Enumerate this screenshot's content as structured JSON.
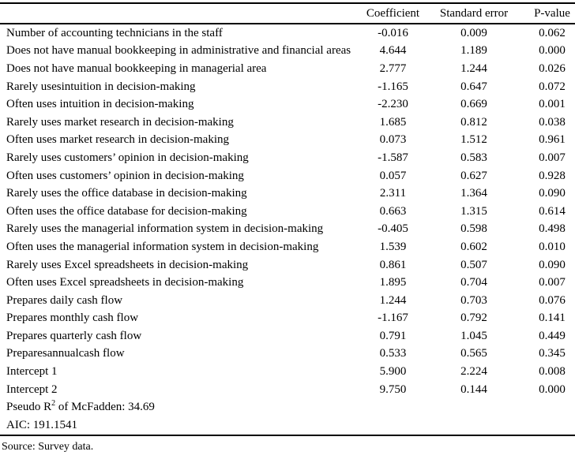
{
  "table": {
    "headers": {
      "label": "",
      "coefficient": "Coefficient",
      "std_error": "Standard error",
      "p_value": "P-value"
    },
    "rows": [
      {
        "label": "Number of accounting technicians in the staff",
        "coefficient": "-0.016",
        "std_error": "0.009",
        "p_value": "0.062"
      },
      {
        "label": "Does not have manual bookkeeping in administrative and financial areas",
        "coefficient": "4.644",
        "std_error": "1.189",
        "p_value": "0.000"
      },
      {
        "label": "Does not have manual bookkeeping in managerial area",
        "coefficient": "2.777",
        "std_error": "1.244",
        "p_value": "0.026"
      },
      {
        "label": "Rarely usesintuition in decision-making",
        "coefficient": "-1.165",
        "std_error": "0.647",
        "p_value": "0.072"
      },
      {
        "label": "Often uses intuition in decision-making",
        "coefficient": "-2.230",
        "std_error": "0.669",
        "p_value": "0.001"
      },
      {
        "label": "Rarely uses market research in decision-making",
        "coefficient": "1.685",
        "std_error": "0.812",
        "p_value": "0.038"
      },
      {
        "label": "Often uses market research in decision-making",
        "coefficient": "0.073",
        "std_error": "1.512",
        "p_value": "0.961"
      },
      {
        "label": "Rarely uses customers’ opinion in decision-making",
        "coefficient": "-1.587",
        "std_error": "0.583",
        "p_value": "0.007"
      },
      {
        "label": "Often uses customers’ opinion in decision-making",
        "coefficient": "0.057",
        "std_error": "0.627",
        "p_value": "0.928"
      },
      {
        "label": "Rarely uses the office database in decision-making",
        "coefficient": "2.311",
        "std_error": "1.364",
        "p_value": "0.090"
      },
      {
        "label": "Often uses the office database for decision-making",
        "coefficient": "0.663",
        "std_error": "1.315",
        "p_value": "0.614"
      },
      {
        "label": "Rarely uses the managerial information system in decision-making",
        "coefficient": "-0.405",
        "std_error": "0.598",
        "p_value": "0.498"
      },
      {
        "label": "Often uses the managerial information system in decision-making",
        "coefficient": "1.539",
        "std_error": "0.602",
        "p_value": "0.010"
      },
      {
        "label": "Rarely uses Excel spreadsheets in decision-making",
        "coefficient": "0.861",
        "std_error": "0.507",
        "p_value": "0.090"
      },
      {
        "label": "Often uses Excel spreadsheets in decision-making",
        "coefficient": "1.895",
        "std_error": "0.704",
        "p_value": "0.007"
      },
      {
        "label": "Prepares daily cash flow",
        "coefficient": "1.244",
        "std_error": "0.703",
        "p_value": "0.076"
      },
      {
        "label": "Prepares monthly cash flow",
        "coefficient": "-1.167",
        "std_error": "0.792",
        "p_value": "0.141"
      },
      {
        "label": "Prepares quarterly cash flow",
        "coefficient": "0.791",
        "std_error": "1.045",
        "p_value": "0.449"
      },
      {
        "label": "Preparesannualcash flow",
        "coefficient": "0.533",
        "std_error": "0.565",
        "p_value": "0.345"
      },
      {
        "label": "Intercept 1",
        "coefficient": "5.900",
        "std_error": "2.224",
        "p_value": "0.008"
      },
      {
        "label": "Intercept 2",
        "coefficient": "9.750",
        "std_error": "0.144",
        "p_value": "0.000"
      }
    ],
    "summary": {
      "pseudo_r2_prefix": "Pseudo R",
      "pseudo_r2_sup": "2",
      "pseudo_r2_suffix": " of McFadden: 34.69",
      "aic": "AIC: 191.1541"
    }
  },
  "footer": {
    "source_note": "Source: Survey data."
  }
}
